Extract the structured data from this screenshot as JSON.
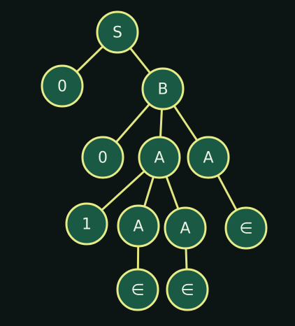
{
  "diagram": {
    "type": "parse-tree",
    "nodes": [
      {
        "id": "S",
        "label": "S"
      },
      {
        "id": "zero_left",
        "label": "0"
      },
      {
        "id": "B",
        "label": "B"
      },
      {
        "id": "zero_mid",
        "label": "0"
      },
      {
        "id": "A_mid",
        "label": "A"
      },
      {
        "id": "A_right",
        "label": "A"
      },
      {
        "id": "one",
        "label": "1"
      },
      {
        "id": "A_lower_left",
        "label": "A"
      },
      {
        "id": "A_lower_right",
        "label": "A"
      },
      {
        "id": "epsilon_right",
        "label": "∈"
      },
      {
        "id": "epsilon_left",
        "label": "∈"
      },
      {
        "id": "epsilon_mid",
        "label": "∈"
      }
    ],
    "edges": [
      {
        "from": "S",
        "to": "zero_left"
      },
      {
        "from": "S",
        "to": "B"
      },
      {
        "from": "B",
        "to": "zero_mid"
      },
      {
        "from": "B",
        "to": "A_mid"
      },
      {
        "from": "B",
        "to": "A_right"
      },
      {
        "from": "A_mid",
        "to": "one"
      },
      {
        "from": "A_mid",
        "to": "A_lower_left"
      },
      {
        "from": "A_mid",
        "to": "A_lower_right"
      },
      {
        "from": "A_right",
        "to": "epsilon_right"
      },
      {
        "from": "A_lower_left",
        "to": "epsilon_left"
      },
      {
        "from": "A_lower_right",
        "to": "epsilon_mid"
      }
    ]
  }
}
